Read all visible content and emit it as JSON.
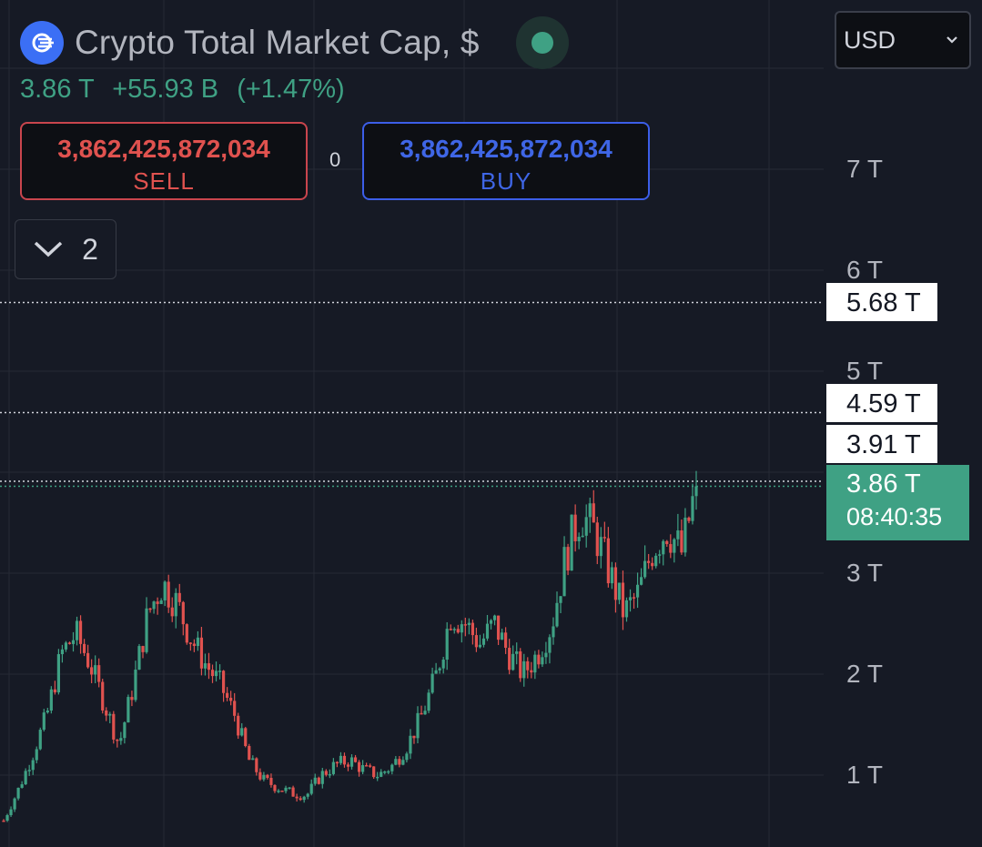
{
  "header": {
    "title": "Crypto Total Market Cap, $",
    "last": "3.86 T",
    "change": "+55.93 B",
    "change_pct": "(+1.47%)"
  },
  "trade": {
    "sell_price": "3,862,425,872,034",
    "sell_label": "SELL",
    "spread": "0",
    "buy_price": "3,862,425,872,034",
    "buy_label": "BUY"
  },
  "indicators_toggle": {
    "count": "2"
  },
  "currency": {
    "selected": "USD"
  },
  "colors": {
    "up": "#3fa184",
    "down": "#e0524f",
    "background": "#161a25",
    "grid": "#262a35"
  },
  "chart_data": {
    "type": "candlestick",
    "title": "Crypto Total Market Cap, $",
    "y_ticks": [
      "1 T",
      "2 T",
      "3 T",
      "5 T",
      "6 T",
      "7 T"
    ],
    "ylim": [
      0.3,
      8.2
    ],
    "price_lines": [
      {
        "label": "5.68 T",
        "value": 5.68
      },
      {
        "label": "4.59 T",
        "value": 4.59
      },
      {
        "label": "3.91 T",
        "value": 3.91
      }
    ],
    "last_price": {
      "label": "3.86 T",
      "value": 3.86,
      "countdown": "08:40:35"
    },
    "close_path_trillions": [
      0.55,
      0.85,
      1.2,
      1.6,
      2.2,
      2.4,
      2.1,
      1.7,
      1.3,
      1.9,
      2.6,
      2.9,
      2.7,
      2.35,
      2.1,
      1.9,
      1.6,
      1.15,
      0.95,
      0.88,
      0.82,
      0.8,
      1.0,
      1.1,
      1.15,
      1.05,
      1.0,
      1.1,
      1.3,
      1.6,
      2.0,
      2.6,
      2.5,
      2.3,
      2.5,
      2.2,
      2.0,
      2.2,
      2.5,
      3.2,
      3.6,
      3.4,
      3.0,
      2.6,
      2.8,
      3.25,
      3.45,
      3.2,
      3.86
    ]
  }
}
